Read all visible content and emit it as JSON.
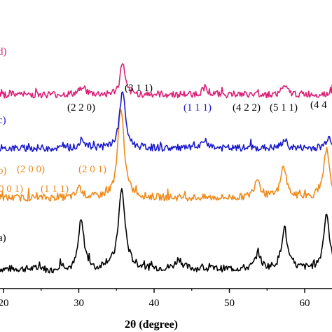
{
  "chart_data": {
    "type": "line",
    "xlabel": "2θ (degree)",
    "xlim": [
      20,
      65
    ],
    "x_ticks": [
      "20",
      "30",
      "40",
      "50",
      "60"
    ],
    "grid": false,
    "legend": "none",
    "traces": [
      {
        "label": "a)",
        "color": "#000000",
        "baseline": 0.0,
        "peaks": [
          [
            30.3,
            5.5,
            0.45
          ],
          [
            35.7,
            9.5,
            0.55
          ],
          [
            43.3,
            1.2,
            0.5
          ],
          [
            53.8,
            2.0,
            0.4
          ],
          [
            57.3,
            5.0,
            0.45
          ],
          [
            62.9,
            6.8,
            0.45
          ]
        ]
      },
      {
        "label": "b)",
        "color": "#F08A1C",
        "baseline": 8.6,
        "peaks": [
          [
            30.1,
            1.2,
            0.4
          ],
          [
            35.6,
            11.0,
            0.5
          ],
          [
            53.7,
            2.4,
            0.45
          ],
          [
            57.2,
            3.8,
            0.45
          ],
          [
            62.9,
            5.8,
            0.45
          ]
        ]
      },
      {
        "label": "c)",
        "color": "#1A1ACC",
        "baseline": 14.6,
        "peaks": [
          [
            30.5,
            1.1,
            0.4
          ],
          [
            35.8,
            7.0,
            0.45
          ],
          [
            46.8,
            1.0,
            0.4
          ],
          [
            57.3,
            1.0,
            0.4
          ],
          [
            63.2,
            1.4,
            0.45
          ]
        ]
      },
      {
        "label": "d)",
        "color": "#DD1F77",
        "baseline": 21.1,
        "peaks": [
          [
            30.5,
            1.1,
            0.4
          ],
          [
            35.8,
            4.0,
            0.35
          ],
          [
            46.8,
            1.0,
            0.4
          ],
          [
            57.3,
            1.0,
            0.4
          ],
          [
            64.0,
            1.2,
            0.45
          ]
        ]
      }
    ],
    "annotations": [
      {
        "text": "(3 1 1)",
        "color": "#000000"
      },
      {
        "text": "(2 2 0)",
        "color": "#000000"
      },
      {
        "text": "(1 1 1)",
        "color": "#1A1ACC"
      },
      {
        "text": "(4 2 2)",
        "color": "#000000"
      },
      {
        "text": "(5 1 1)",
        "color": "#000000"
      },
      {
        "text": "(4 4",
        "color": "#000000"
      },
      {
        "text": "(2 0 0)",
        "color": "#F08A1C"
      },
      {
        "text": "(2 0 1)",
        "color": "#F08A1C"
      },
      {
        "text": "0 0 1)",
        "color": "#F08A1C"
      },
      {
        "text": "(1 1 1)",
        "color": "#F08A1C"
      }
    ]
  }
}
